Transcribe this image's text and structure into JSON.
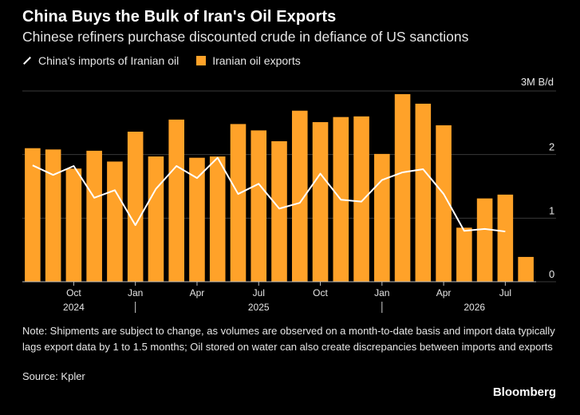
{
  "header": {
    "title": "China Buys the Bulk of Iran's Oil Exports",
    "subtitle": "Chinese refiners purchase discounted crude in defiance of US sanctions"
  },
  "legend": {
    "line_label": "China's imports of Iranian oil",
    "bar_label": "Iranian oil exports"
  },
  "unit_label": "3M B/d",
  "footer": {
    "note": "Note: Shipments are subject to change, as volumes are observed on a month-to-date basis and import data typically lags export data by 1 to 1.5 months; Oil stored on water can also create discrepancies between imports and exports",
    "source": "Source: Kpler",
    "brand": "Bloomberg"
  },
  "colors": {
    "bar": "#FFA229",
    "line": "#FFFFFF",
    "grid": "#3a3a3a",
    "axis": "#bdbdbd"
  },
  "chart_data": {
    "type": "bar",
    "x": [
      "2024-08",
      "2024-09",
      "2024-10",
      "2024-11",
      "2024-12",
      "2025-01",
      "2025-02",
      "2025-03",
      "2025-04",
      "2025-05",
      "2025-06",
      "2025-07",
      "2025-08",
      "2025-09",
      "2025-10",
      "2025-11",
      "2025-12",
      "2026-01",
      "2026-02",
      "2026-03",
      "2026-04",
      "2026-05",
      "2026-06",
      "2026-07",
      "2026-08"
    ],
    "series": [
      {
        "name": "Iranian oil exports",
        "kind": "bar",
        "values": [
          2.1,
          2.08,
          1.78,
          2.06,
          1.89,
          2.36,
          1.97,
          2.55,
          1.95,
          1.97,
          2.48,
          2.38,
          2.21,
          2.69,
          2.51,
          2.59,
          2.6,
          2.01,
          2.95,
          2.8,
          2.46,
          0.85,
          1.31,
          1.37,
          0.39
        ]
      },
      {
        "name": "China's imports of Iranian oil",
        "kind": "line",
        "values": [
          1.83,
          1.68,
          1.82,
          1.32,
          1.44,
          0.89,
          1.46,
          1.82,
          1.63,
          1.95,
          1.38,
          1.54,
          1.15,
          1.24,
          1.7,
          1.29,
          1.26,
          1.6,
          1.72,
          1.77,
          1.38,
          0.8,
          0.83,
          0.79,
          null
        ]
      }
    ],
    "y_unit": "3M B/d",
    "ylim": [
      0,
      3
    ],
    "yticks": [
      0,
      1,
      2
    ],
    "x_tick_labels": [
      {
        "index": 2,
        "label": "Oct"
      },
      {
        "index": 5,
        "label": "Jan"
      },
      {
        "index": 8,
        "label": "Apr"
      },
      {
        "index": 11,
        "label": "Jul"
      },
      {
        "index": 14,
        "label": "Oct"
      },
      {
        "index": 17,
        "label": "Jan"
      },
      {
        "index": 20,
        "label": "Apr"
      },
      {
        "index": 23,
        "label": "Jul"
      }
    ],
    "year_labels": [
      {
        "label": "2024",
        "index": 2
      },
      {
        "label": "2025",
        "index": 11
      },
      {
        "label": "2026",
        "index": 21.5
      }
    ],
    "year_separators": [
      5,
      17
    ],
    "grid": true,
    "legend_position": "top-left"
  }
}
